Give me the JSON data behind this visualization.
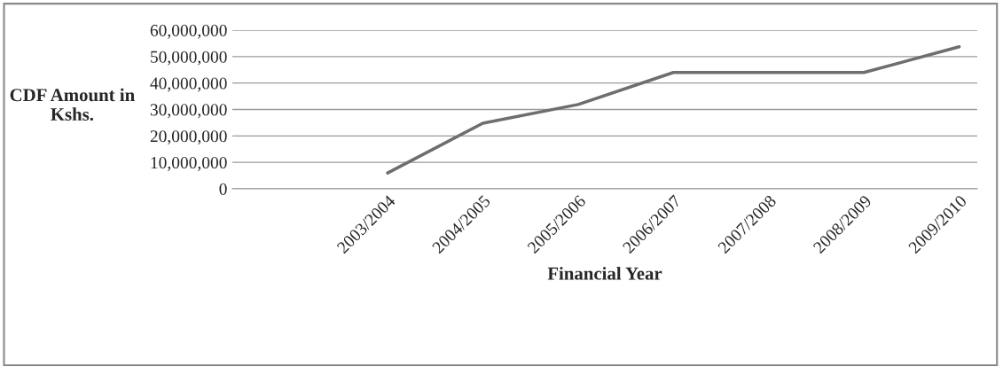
{
  "chart_data": {
    "type": "line",
    "xlabel": "Financial Year",
    "ylabel": "CDF Amount in Kshs.",
    "categories": [
      "2003/2004",
      "2004/2005",
      "2005/2006",
      "2006/2007",
      "2007/2008",
      "2008/2009",
      "2009/2010"
    ],
    "series": [
      {
        "color": "#6e6e6e",
        "values": [
          6000000,
          24800000,
          31900000,
          44000000,
          44000000,
          44000000,
          53700000
        ]
      }
    ],
    "ylim": [
      0,
      60000000
    ],
    "yticks": [
      {
        "value": 0,
        "label": "0"
      },
      {
        "value": 10000000,
        "label": "10,000,000"
      },
      {
        "value": 20000000,
        "label": "20,000,000"
      },
      {
        "value": 30000000,
        "label": "30,000,000"
      },
      {
        "value": 40000000,
        "label": "40,000,000"
      },
      {
        "value": 50000000,
        "label": "50,000,000"
      },
      {
        "value": 60000000,
        "label": "60,000,000"
      }
    ],
    "grid": "y",
    "legend": false,
    "marker": "none",
    "line_style": "solid"
  }
}
